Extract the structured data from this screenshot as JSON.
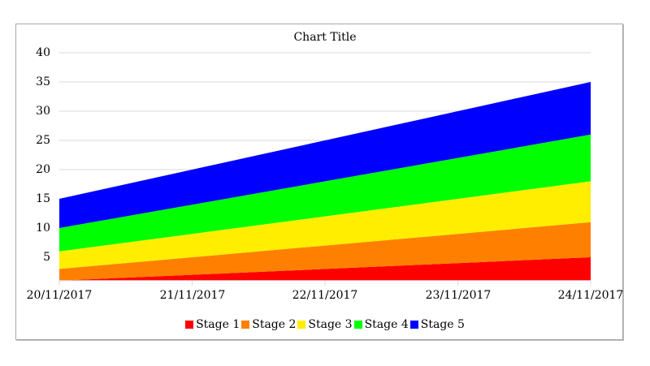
{
  "chart_data": {
    "type": "area",
    "stacked": true,
    "title": "Chart Title",
    "xlabel": "",
    "ylabel": "",
    "categories": [
      "20/11/2017",
      "21/11/2017",
      "22/11/2017",
      "23/11/2017",
      "24/11/2017"
    ],
    "series": [
      {
        "name": "Stage 1",
        "color": "#ff0000",
        "values": [
          1,
          2,
          3,
          4,
          5
        ]
      },
      {
        "name": "Stage 2",
        "color": "#ff8000",
        "values": [
          2,
          3,
          4,
          5,
          6
        ]
      },
      {
        "name": "Stage 3",
        "color": "#ffee00",
        "values": [
          3,
          4,
          5,
          6,
          7
        ]
      },
      {
        "name": "Stage 4",
        "color": "#00ff00",
        "values": [
          4,
          5,
          6,
          7,
          8
        ]
      },
      {
        "name": "Stage 5",
        "color": "#0000ff",
        "values": [
          5,
          6,
          7,
          8,
          9
        ]
      }
    ],
    "ylim": [
      1,
      40
    ],
    "yticks": [
      5,
      10,
      15,
      20,
      25,
      30,
      35,
      40
    ],
    "grid": true,
    "legend_position": "bottom"
  },
  "ytick_labels": [
    "40",
    "35",
    "30",
    "25",
    "20",
    "15",
    "10",
    "5"
  ],
  "legend": [
    "Stage 1",
    "Stage 2",
    "Stage 3",
    "Stage 4",
    "Stage 5"
  ]
}
